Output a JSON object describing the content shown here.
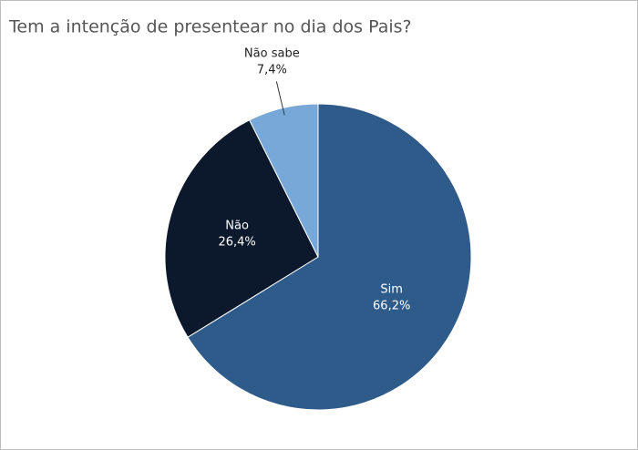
{
  "chart_data": {
    "type": "pie",
    "title": "Tem a intenção de presentear no dia dos Pais?",
    "categories": [
      "Sim",
      "Não",
      "Não sabe"
    ],
    "values": [
      66.2,
      26.4,
      7.4
    ],
    "value_labels": [
      "66,2%",
      "26,4%",
      "7,4%"
    ],
    "colors": [
      "#2f5b8b",
      "#0c182b",
      "#78a8d8"
    ]
  }
}
